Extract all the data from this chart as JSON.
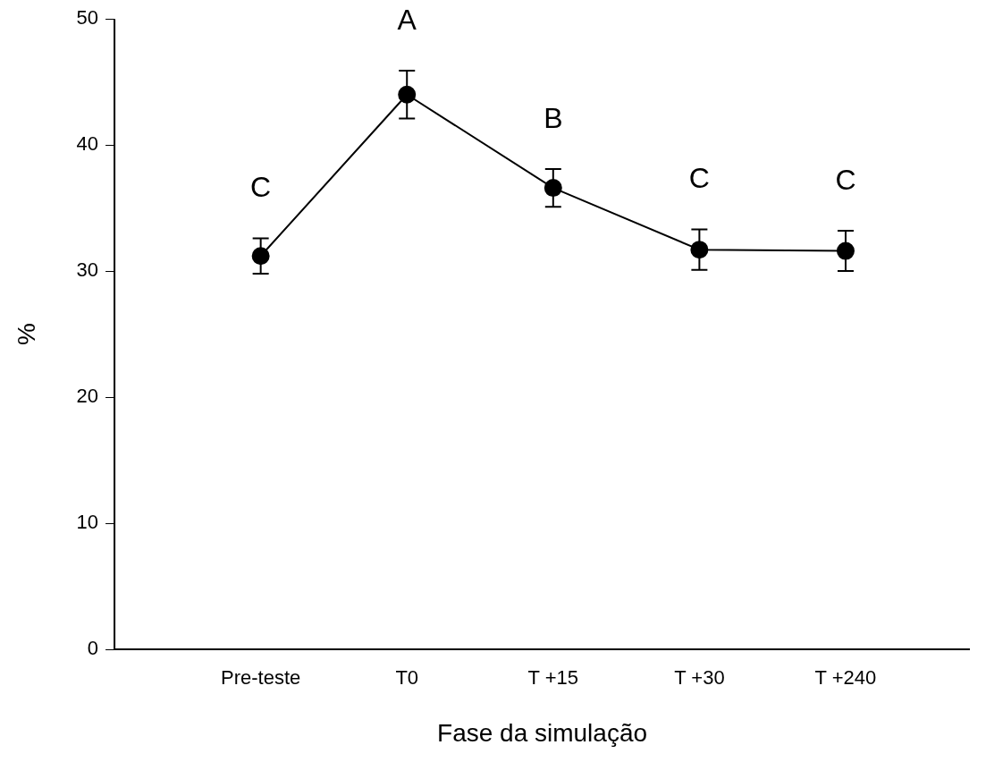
{
  "chart_data": {
    "type": "line",
    "xlabel": "Fase da simulação",
    "ylabel": "%",
    "categories": [
      "Pre-teste",
      "T0",
      "T +15",
      "T +30",
      "T +240"
    ],
    "series": [
      {
        "color": "#000000",
        "values": [
          31.2,
          44.0,
          36.6,
          31.7,
          31.6
        ],
        "errors": [
          1.4,
          1.9,
          1.5,
          1.6,
          1.6
        ]
      }
    ],
    "ylim": [
      0,
      50
    ],
    "yticks": [
      0,
      10,
      20,
      30,
      40,
      50
    ],
    "grid": false,
    "legend": false,
    "marker": "circle",
    "line_style": "solid",
    "annotations": [
      "C",
      "A",
      "B",
      "C",
      "C"
    ]
  }
}
